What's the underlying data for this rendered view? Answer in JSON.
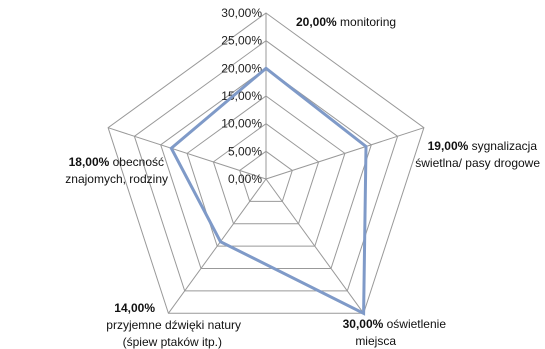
{
  "chart_data": {
    "type": "radar",
    "title": "",
    "r_ticks": [
      "30,00%",
      "25,00%",
      "20,00%",
      "15,00%",
      "10,00%",
      "5,00%",
      "0,00%"
    ],
    "r_max": 30,
    "axes": [
      {
        "value": 20,
        "value_label": "20,00%",
        "label_lines": [
          "monitoring"
        ]
      },
      {
        "value": 19,
        "value_label": "19,00%",
        "label_lines": [
          "sygnalizacja",
          "świetlna/ pasy drogowe"
        ]
      },
      {
        "value": 30,
        "value_label": "30,00%",
        "label_lines": [
          "oświetlenie",
          "miejsca"
        ]
      },
      {
        "value": 14,
        "value_label": "14,00%",
        "label_lines": [
          "przyjemne dźwięki natury",
          "(śpiew ptaków itp.)"
        ]
      },
      {
        "value": 18,
        "value_label": "18,00%",
        "label_lines": [
          "obecność",
          "znajomych, rodziny"
        ]
      }
    ],
    "series": [
      {
        "values": [
          20,
          19,
          30,
          14,
          18
        ],
        "color": "#7f9ac8"
      }
    ],
    "grid_color": "#999999"
  }
}
